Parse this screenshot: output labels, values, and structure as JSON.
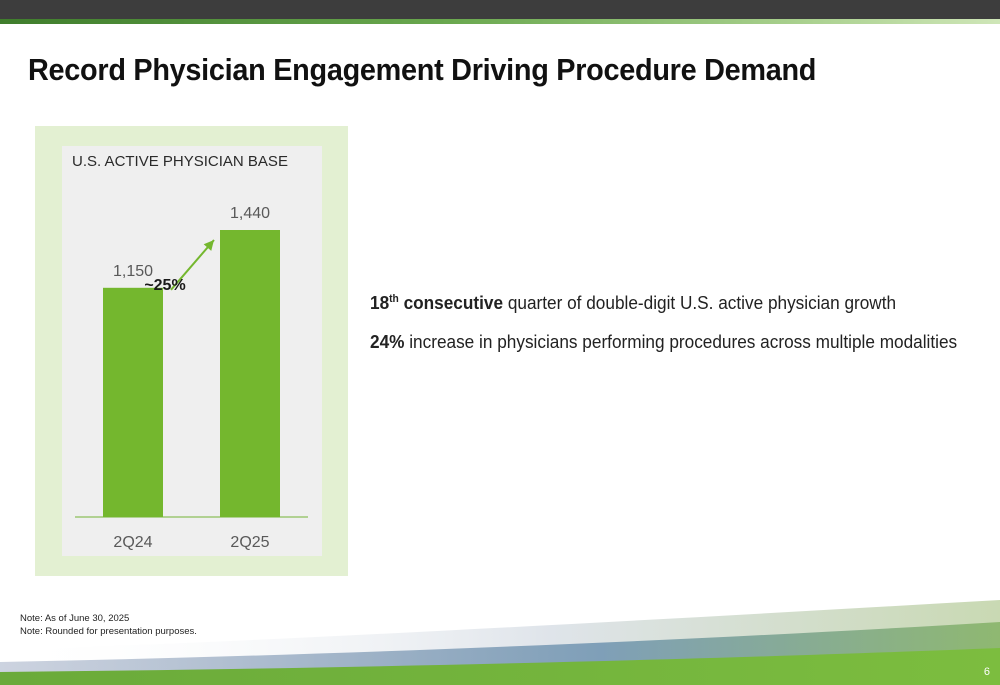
{
  "title": "Record Physician Engagement Driving Procedure Demand",
  "chart_data": {
    "type": "bar",
    "title": "U.S. ACTIVE PHYSICIAN BASE",
    "categories": [
      "2Q24",
      "2Q25"
    ],
    "values": [
      1150,
      1440
    ],
    "value_labels": [
      "1,150",
      "1,440"
    ],
    "growth_annotation": "~25%",
    "ylim": [
      0,
      1550
    ],
    "grid": false,
    "bar_color": "#74b72e"
  },
  "bullets": [
    {
      "prefix": "18",
      "sup": "th",
      "bold": " consecutive",
      "rest": " quarter of double-digit U.S. active physician growth"
    },
    {
      "prefix": "",
      "sup": "",
      "bold": "24%",
      "rest": " increase in physicians performing procedures across multiple modalities"
    }
  ],
  "notes": [
    "Note: As of June 30, 2025",
    "Note: Rounded for presentation purposes."
  ],
  "page_number": "6",
  "colors": {
    "accent": "#74b72e",
    "header": "#3d3d3d",
    "chart_frame": "#e3f0d2",
    "chart_panel": "#efefef"
  }
}
